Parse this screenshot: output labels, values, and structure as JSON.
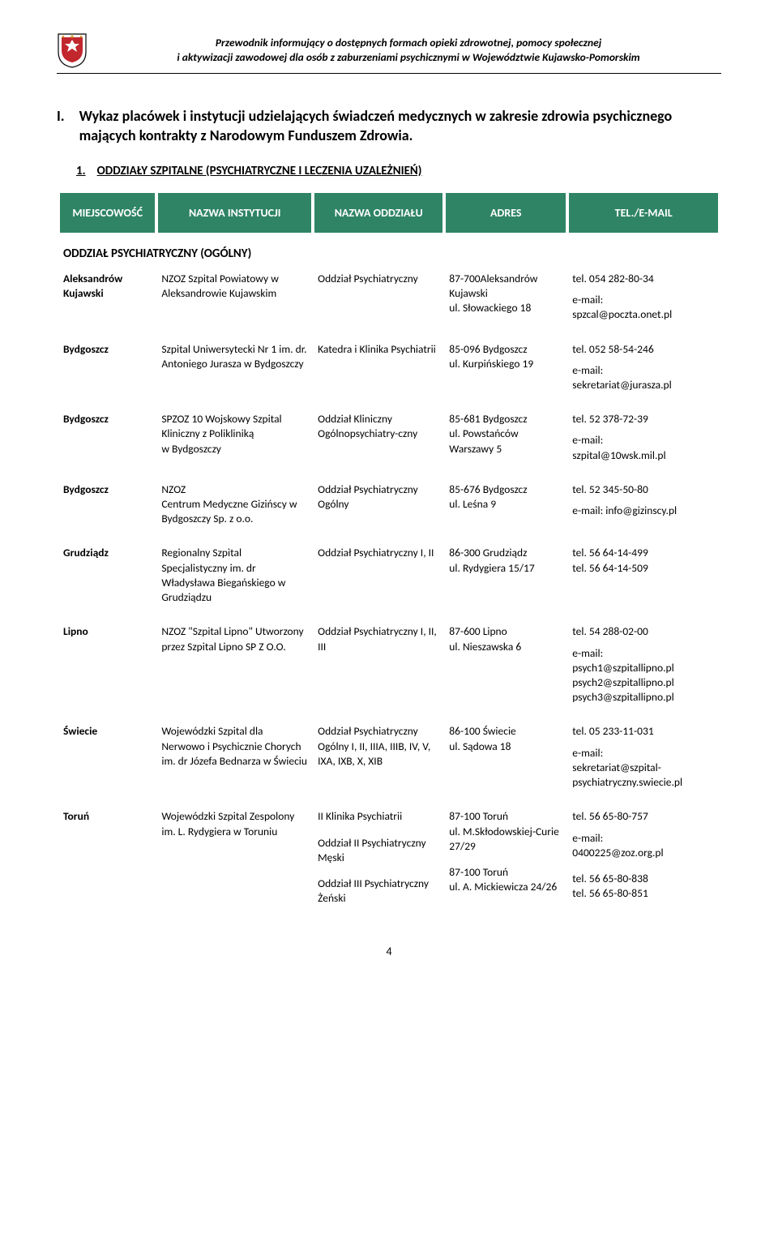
{
  "header": {
    "line1": "Przewodnik informujący o dostępnych formach opieki zdrowotnej, pomocy społecznej",
    "line2": "i aktywizacji zawodowej dla osób z zaburzeniami psychicznymi w Województwie Kujawsko-Pomorskim"
  },
  "section": {
    "number": "I.",
    "title": "Wykaz placówek i instytucji udzielających świadczeń medycznych w zakresie zdrowia psychicznego mających kontrakty z Narodowym Funduszem Zdrowia."
  },
  "subhead": {
    "number": "1.",
    "title": "ODDZIAŁY SZPITALNE (PSYCHIATRYCZNE I LECZENIA UZALEŻNIEŃ)"
  },
  "columns": {
    "c1": "MIEJSCOWOŚĆ",
    "c2": "NAZWA INSTYTUCJI",
    "c3": "NAZWA\nODDZIAŁU",
    "c4": "ADRES",
    "c5": "TEL./E-MAIL"
  },
  "groupHeader": "ODDZIAŁ PSYCHIATRYCZNY (OGÓLNY)",
  "rows": [
    {
      "loc": "Aleksandrów Kujawski",
      "inst": "NZOZ Szpital Powiatowy w Aleksandrowie Kujawskim",
      "dept": "Oddział Psychiatryczny",
      "addr": "87-700Aleksandrów Kujawski\nul. Słowackiego 18",
      "tel": "tel. 054 282-80-34",
      "email": "e-mail:\nspzcal@poczta.onet.pl"
    },
    {
      "loc": "Bydgoszcz",
      "inst": "Szpital Uniwersytecki Nr 1 im. dr. Antoniego Jurasza w Bydgoszczy",
      "dept": "Katedra i Klinika Psychiatrii",
      "addr": "85-096 Bydgoszcz\nul. Kurpińskiego 19",
      "tel": "tel. 052 58-54-246",
      "email": "e-mail:\nsekretariat@jurasza.pl"
    },
    {
      "loc": "Bydgoszcz",
      "inst": "SPZOZ 10 Wojskowy Szpital Kliniczny z Polikliniką\nw Bydgoszczy",
      "dept": "Oddział Kliniczny Ogólnopsychiatry-czny",
      "addr": "85-681 Bydgoszcz\nul. Powstańców Warszawy 5",
      "tel": "tel. 52 378-72-39",
      "email": "e-mail:\nszpital@10wsk.mil.pl"
    },
    {
      "loc": "Bydgoszcz",
      "inst": "NZOZ\nCentrum Medyczne Gizińscy w Bydgoszczy Sp. z o.o.",
      "dept": "Oddział Psychiatryczny Ogólny",
      "addr": "85-676 Bydgoszcz\nul. Leśna 9",
      "tel": "tel. 52 345-50-80",
      "email": "e-mail: info@gizinscy.pl"
    },
    {
      "loc": "Grudziądz",
      "inst": "Regionalny Szpital Specjalistyczny im. dr Władysława Biegańskiego w Grudziądzu",
      "dept": "Oddział Psychiatryczny I, II",
      "addr": "86-300 Grudziądz\nul. Rydygiera 15/17",
      "tel": "tel. 56 64-14-499\ntel. 56 64-14-509",
      "email": ""
    },
    {
      "loc": "Lipno",
      "inst": "NZOZ \"Szpital Lipno\" Utworzony przez Szpital Lipno SP Z O.O.",
      "dept": "Oddział Psychiatryczny I, II, III",
      "addr": "87-600 Lipno\nul. Nieszawska 6",
      "tel": "tel. 54 288-02-00",
      "email": "e-mail:\npsych1@szpitallipno.pl\npsych2@szpitallipno.pl\npsych3@szpitallipno.pl"
    },
    {
      "loc": "Świecie",
      "inst": "Wojewódzki Szpital dla Nerwowo i Psychicznie Chorych im. dr Józefa Bednarza w Świeciu",
      "dept": "Oddział Psychiatryczny\nOgólny I, II, IIIA, IIIB, IV, V, IXA, IXB, X, XIB",
      "addr": "86-100 Świecie\nul. Sądowa 18",
      "tel": "tel. 05 233-11-031",
      "email": "e-mail:\nsekretariat@szpital-psychiatryczny.swiecie.pl"
    },
    {
      "loc": "Toruń",
      "inst": "Wojewódzki Szpital Zespolony im. L. Rydygiera w Toruniu",
      "dept": "II Klinika Psychiatrii",
      "addr": "87-100 Toruń\nul. M.Skłodowskiej-Curie 27/29",
      "tel": "tel. 56 65-80-757",
      "email": "e-mail:\n0400225@zoz.org.pl",
      "extra": [
        {
          "dept": "Oddział II Psychiatryczny Męski",
          "addr": "87-100 Toruń\nul. A. Mickiewicza 24/26",
          "tel": "tel. 56 65-80-838\ntel. 56 65-80-851"
        },
        {
          "dept": "Oddział III Psychiatryczny Żeński",
          "addr": "",
          "tel": ""
        }
      ]
    }
  ],
  "page": "4",
  "colors": {
    "headerBg": "#2f8466",
    "crestRed": "#c1272d",
    "crestGold": "#d6a52a"
  }
}
